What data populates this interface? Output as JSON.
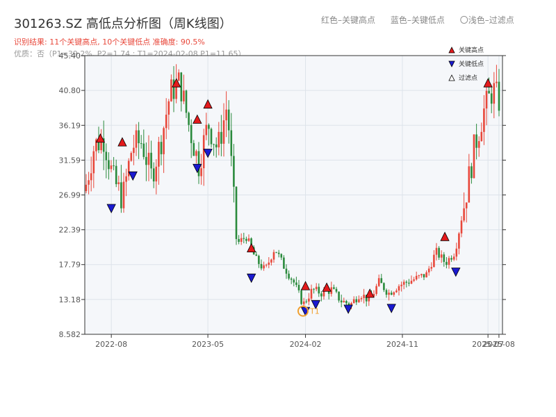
{
  "header": {
    "title": "301263.SZ 高低点分析图（周K线图）",
    "legend_red": "红色–关键高点",
    "legend_blue": "蓝色–关键低点",
    "legend_light": "〇浅色–过滤点",
    "summary": "识别结果: 11个关键高点, 10个关键低点  准确度: 90.5%",
    "quality": "优质：否（P1=39.2%, P2=1.74 ; T1=2024-02-08 P1=11.65）"
  },
  "colors": {
    "up": "#e8473a",
    "down": "#2a8a3c",
    "high_marker": "#e41a1c",
    "low_marker": "#1a1ad0",
    "t1": "#f0a030",
    "plot_bg": "#f5f7fa",
    "grid": "#dde3ea"
  },
  "chart_data": {
    "type": "candlestick",
    "ylim": [
      8.582,
      45.4
    ],
    "yticks": [
      "45.40",
      "40.80",
      "36.19",
      "31.59",
      "26.99",
      "22.39",
      "17.79",
      "13.18",
      "8.582"
    ],
    "xticks": [
      "2022-08",
      "2023-05",
      "2024-02",
      "2024-11",
      "2025-07",
      "2025-08"
    ],
    "series_closes": [
      {
        "x": "2022-06",
        "y": 27.5
      },
      {
        "x": "2022-07",
        "y": 33.5
      },
      {
        "x": "2022-08",
        "y": 34.5
      },
      {
        "x": "2022-08",
        "y": 29.0
      },
      {
        "x": "2022-09",
        "y": 26.5
      },
      {
        "x": "2022-10",
        "y": 33.5
      },
      {
        "x": "2022-11",
        "y": 34.0
      },
      {
        "x": "2022-12",
        "y": 29.5
      },
      {
        "x": "2023-01",
        "y": 34.0
      },
      {
        "x": "2023-02",
        "y": 40.5
      },
      {
        "x": "2023-03",
        "y": 42.0
      },
      {
        "x": "2023-04",
        "y": 36.0
      },
      {
        "x": "2023-04",
        "y": 31.0
      },
      {
        "x": "2023-05",
        "y": 36.5
      },
      {
        "x": "2023-05",
        "y": 33.0
      },
      {
        "x": "2023-05",
        "y": 39.0
      },
      {
        "x": "2023-06",
        "y": 20.5
      },
      {
        "x": "2023-07",
        "y": 21.5
      },
      {
        "x": "2023-09",
        "y": 18.5
      },
      {
        "x": "2023-10",
        "y": 17.0
      },
      {
        "x": "2023-11",
        "y": 20.0
      },
      {
        "x": "2023-12",
        "y": 17.5
      },
      {
        "x": "2024-01",
        "y": 15.5
      },
      {
        "x": "2024-02",
        "y": 12.5
      },
      {
        "x": "2024-02",
        "y": 14.5
      },
      {
        "x": "2024-03",
        "y": 14.0
      },
      {
        "x": "2024-04",
        "y": 14.5
      },
      {
        "x": "2024-05",
        "y": 13.0
      },
      {
        "x": "2024-06",
        "y": 12.5
      },
      {
        "x": "2024-07",
        "y": 14.0
      },
      {
        "x": "2024-08",
        "y": 13.0
      },
      {
        "x": "2024-09",
        "y": 15.5
      },
      {
        "x": "2024-10",
        "y": 14.0
      },
      {
        "x": "2024-11",
        "y": 15.0
      },
      {
        "x": "2024-12",
        "y": 15.5
      },
      {
        "x": "2025-01",
        "y": 16.0
      },
      {
        "x": "2025-02",
        "y": 16.5
      },
      {
        "x": "2025-03",
        "y": 19.5
      },
      {
        "x": "2025-03",
        "y": 18.0
      },
      {
        "x": "2025-04",
        "y": 19.5
      },
      {
        "x": "2025-05",
        "y": 26.0
      },
      {
        "x": "2025-06",
        "y": 33.0
      },
      {
        "x": "2025-06",
        "y": 38.0
      },
      {
        "x": "2025-07",
        "y": 41.0
      },
      {
        "x": "2025-08",
        "y": 38.5
      }
    ],
    "key_highs": [
      {
        "x": "2022-07",
        "y": 34.5
      },
      {
        "x": "2022-09",
        "y": 34.0
      },
      {
        "x": "2023-02",
        "y": 41.8
      },
      {
        "x": "2023-04",
        "y": 37.0
      },
      {
        "x": "2023-05",
        "y": 39.0
      },
      {
        "x": "2023-09",
        "y": 20.0
      },
      {
        "x": "2024-02",
        "y": 15.0
      },
      {
        "x": "2024-04",
        "y": 14.8
      },
      {
        "x": "2024-08",
        "y": 14.0
      },
      {
        "x": "2025-03",
        "y": 21.5
      },
      {
        "x": "2025-07",
        "y": 41.8
      }
    ],
    "key_lows": [
      {
        "x": "2022-08",
        "y": 25.2
      },
      {
        "x": "2022-10",
        "y": 29.5
      },
      {
        "x": "2023-04",
        "y": 30.5
      },
      {
        "x": "2023-05",
        "y": 32.5
      },
      {
        "x": "2023-09",
        "y": 16.0
      },
      {
        "x": "2024-02",
        "y": 11.6
      },
      {
        "x": "2024-03",
        "y": 12.5
      },
      {
        "x": "2024-06",
        "y": 11.9
      },
      {
        "x": "2024-10",
        "y": 12.0
      },
      {
        "x": "2025-04",
        "y": 16.8
      }
    ],
    "annotations": [
      {
        "text": "T1",
        "x": "2024-02-08",
        "y": 11.65
      }
    ],
    "legend": [
      "关键高点",
      "关键低点",
      "过滤点"
    ]
  }
}
